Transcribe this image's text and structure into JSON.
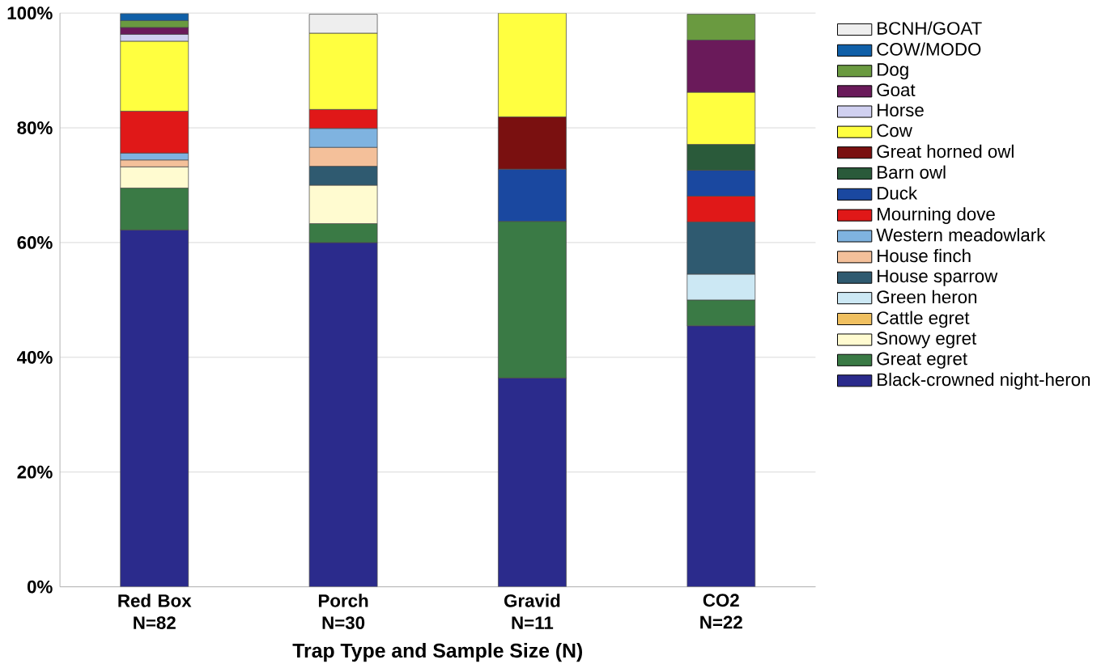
{
  "chart_data": {
    "type": "bar",
    "stacked": true,
    "xlabel": "Trap Type and Sample Size (N)",
    "categories": [
      "Red Box N=82",
      "Porch N=30",
      "Gravid N=11",
      "CO2 N=22"
    ],
    "ylim": [
      0,
      100
    ],
    "yticks": [
      {
        "value": 0,
        "label": "0%"
      },
      {
        "value": 20,
        "label": "20%"
      },
      {
        "value": 40,
        "label": "40%"
      },
      {
        "value": 60,
        "label": "60%"
      },
      {
        "value": 80,
        "label": "80%"
      },
      {
        "value": 100,
        "label": "100%"
      }
    ],
    "grid": "y",
    "legend": "right",
    "series": [
      {
        "name": "Black-crowned night-heron",
        "color": "#2b2b8c",
        "values": [
          62.2,
          60,
          36.4,
          45.5
        ]
      },
      {
        "name": "Great egret",
        "color": "#3a7a45",
        "values": [
          7.3,
          3.3,
          27.3,
          4.5
        ]
      },
      {
        "name": "Snowy egret",
        "color": "#fffbd0",
        "values": [
          3.7,
          6.7,
          null,
          null
        ]
      },
      {
        "name": "Cattle egret",
        "color": "#f0c060",
        "values": [
          null,
          null,
          null,
          null
        ]
      },
      {
        "name": "Green heron",
        "color": "#cce8f4",
        "values": [
          null,
          null,
          null,
          4.5
        ]
      },
      {
        "name": "House sparrow",
        "color": "#2f5a70",
        "values": [
          null,
          3.3,
          null,
          9.1
        ]
      },
      {
        "name": "House finch",
        "color": "#f4c09a",
        "values": [
          1.2,
          3.3,
          null,
          null
        ]
      },
      {
        "name": "Western meadowlark",
        "color": "#7fb3e0",
        "values": [
          1.2,
          3.3,
          null,
          null
        ]
      },
      {
        "name": "Mourning dove",
        "color": "#e01818",
        "values": [
          7.3,
          3.3,
          null,
          4.5
        ]
      },
      {
        "name": "Duck",
        "color": "#1a48a0",
        "values": [
          null,
          null,
          9.1,
          4.5
        ]
      },
      {
        "name": "Barn owl",
        "color": "#2a5a3a",
        "values": [
          null,
          null,
          null,
          4.5
        ]
      },
      {
        "name": "Great horned owl",
        "color": "#7a1010",
        "values": [
          null,
          null,
          9.1,
          null
        ]
      },
      {
        "name": "Cow",
        "color": "#ffff40",
        "values": [
          12.2,
          13.3,
          18.1,
          9.1
        ]
      },
      {
        "name": "Horse",
        "color": "#d0d0f0",
        "values": [
          1.2,
          null,
          null,
          null
        ]
      },
      {
        "name": "Goat",
        "color": "#6a1a5a",
        "values": [
          1.2,
          null,
          null,
          9.1
        ]
      },
      {
        "name": "Dog",
        "color": "#6a9a40",
        "values": [
          1.2,
          null,
          null,
          4.5
        ]
      },
      {
        "name": "COW/MODO",
        "color": "#1060a8",
        "values": [
          1.2,
          null,
          null,
          null
        ]
      },
      {
        "name": "BCNH/GOAT",
        "color": "#eeeeee",
        "values": [
          null,
          3.3,
          null,
          null
        ]
      }
    ]
  }
}
